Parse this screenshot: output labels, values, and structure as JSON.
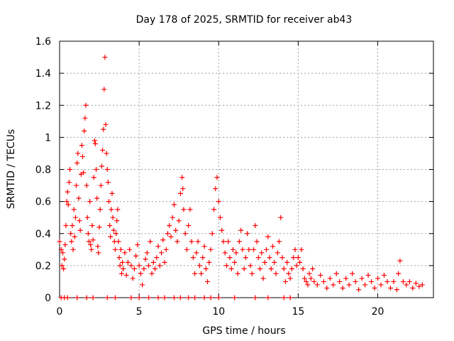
{
  "chart_data": {
    "type": "scatter",
    "title": "Day 178 of 2025, SRMTID for receiver ab43",
    "xlabel": "GPS time / hours",
    "ylabel": "SRMTID / TECUs",
    "xlim": [
      0,
      23.5
    ],
    "ylim": [
      0,
      1.6
    ],
    "xticks": [
      0,
      5,
      10,
      15,
      20
    ],
    "xtick_labels": [
      "0",
      "5",
      "10",
      "15",
      "20"
    ],
    "yticks": [
      0,
      0.2,
      0.4,
      0.6,
      0.8,
      1.0,
      1.2,
      1.4,
      1.6
    ],
    "ytick_labels": [
      "0",
      "0.2",
      "0.4",
      "0.6",
      "0.8",
      "1",
      "1.2",
      "1.4",
      "1.6"
    ],
    "grid": true,
    "marker": "plus",
    "color": "#ff0000",
    "series": [
      {
        "name": "SRMTID",
        "points": [
          [
            0.0,
            0.35
          ],
          [
            0.1,
            0.3
          ],
          [
            0.15,
            0.2
          ],
          [
            0.2,
            0.28
          ],
          [
            0.25,
            0.18
          ],
          [
            0.3,
            0.24
          ],
          [
            0.35,
            0.33
          ],
          [
            0.4,
            0.45
          ],
          [
            0.45,
            0.6
          ],
          [
            0.5,
            0.66
          ],
          [
            0.55,
            0.58
          ],
          [
            0.6,
            0.72
          ],
          [
            0.65,
            0.8
          ],
          [
            0.7,
            0.4
          ],
          [
            0.75,
            0.35
          ],
          [
            0.8,
            0.45
          ],
          [
            0.85,
            0.3
          ],
          [
            0.9,
            0.55
          ],
          [
            0.95,
            0.38
          ],
          [
            1.0,
            0.5
          ],
          [
            1.05,
            0.7
          ],
          [
            1.1,
            0.84
          ],
          [
            1.15,
            0.9
          ],
          [
            1.2,
            0.62
          ],
          [
            1.25,
            0.48
          ],
          [
            1.3,
            0.42
          ],
          [
            1.35,
            0.77
          ],
          [
            1.4,
            0.95
          ],
          [
            1.45,
            0.88
          ],
          [
            1.5,
            0.78
          ],
          [
            1.55,
            1.04
          ],
          [
            1.6,
            1.12
          ],
          [
            1.65,
            1.2
          ],
          [
            1.7,
            0.7
          ],
          [
            1.75,
            0.5
          ],
          [
            1.8,
            0.4
          ],
          [
            1.85,
            0.35
          ],
          [
            1.9,
            0.6
          ],
          [
            1.95,
            0.33
          ],
          [
            2.0,
            0.3
          ],
          [
            2.05,
            0.45
          ],
          [
            2.1,
            0.36
          ],
          [
            2.15,
            0.75
          ],
          [
            2.2,
            0.98
          ],
          [
            2.25,
            0.96
          ],
          [
            2.3,
            0.8
          ],
          [
            2.35,
            0.62
          ],
          [
            2.4,
            0.32
          ],
          [
            2.45,
            0.28
          ],
          [
            2.5,
            0.44
          ],
          [
            2.55,
            0.55
          ],
          [
            2.6,
            0.7
          ],
          [
            2.65,
            0.82
          ],
          [
            2.7,
            0.92
          ],
          [
            2.75,
            1.05
          ],
          [
            2.8,
            1.3
          ],
          [
            2.85,
            1.5
          ],
          [
            2.9,
            1.08
          ],
          [
            2.95,
            0.9
          ],
          [
            3.0,
            0.8
          ],
          [
            3.05,
            0.72
          ],
          [
            3.1,
            0.6
          ],
          [
            3.15,
            0.45
          ],
          [
            3.2,
            0.38
          ],
          [
            3.25,
            0.55
          ],
          [
            3.3,
            0.65
          ],
          [
            3.35,
            0.5
          ],
          [
            3.4,
            0.42
          ],
          [
            3.45,
            0.35
          ],
          [
            3.5,
            0.3
          ],
          [
            3.55,
            0.4
          ],
          [
            3.6,
            0.48
          ],
          [
            3.65,
            0.55
          ],
          [
            3.7,
            0.35
          ],
          [
            3.75,
            0.25
          ],
          [
            3.8,
            0.2
          ],
          [
            3.85,
            0.3
          ],
          [
            3.9,
            0.15
          ],
          [
            3.95,
            0.22
          ],
          [
            4.0,
            0.18
          ],
          [
            4.1,
            0.28
          ],
          [
            4.2,
            0.14
          ],
          [
            4.3,
            0.22
          ],
          [
            4.4,
            0.3
          ],
          [
            4.5,
            0.2
          ],
          [
            4.6,
            0.12
          ],
          [
            4.7,
            0.18
          ],
          [
            4.8,
            0.26
          ],
          [
            4.9,
            0.33
          ],
          [
            5.0,
            0.2
          ],
          [
            5.1,
            0.15
          ],
          [
            5.2,
            0.08
          ],
          [
            5.3,
            0.18
          ],
          [
            5.4,
            0.24
          ],
          [
            5.5,
            0.28
          ],
          [
            5.6,
            0.2
          ],
          [
            5.7,
            0.35
          ],
          [
            5.8,
            0.15
          ],
          [
            5.9,
            0.22
          ],
          [
            6.0,
            0.18
          ],
          [
            6.1,
            0.25
          ],
          [
            6.2,
            0.32
          ],
          [
            6.3,
            0.2
          ],
          [
            6.4,
            0.28
          ],
          [
            6.5,
            0.36
          ],
          [
            6.6,
            0.22
          ],
          [
            6.7,
            0.3
          ],
          [
            6.8,
            0.4
          ],
          [
            6.9,
            0.45
          ],
          [
            7.0,
            0.38
          ],
          [
            7.1,
            0.5
          ],
          [
            7.2,
            0.58
          ],
          [
            7.3,
            0.42
          ],
          [
            7.4,
            0.35
          ],
          [
            7.5,
            0.48
          ],
          [
            7.6,
            0.65
          ],
          [
            7.7,
            0.75
          ],
          [
            7.75,
            0.68
          ],
          [
            7.8,
            0.55
          ],
          [
            7.9,
            0.4
          ],
          [
            8.0,
            0.3
          ],
          [
            8.1,
            0.45
          ],
          [
            8.2,
            0.55
          ],
          [
            8.3,
            0.35
          ],
          [
            8.4,
            0.25
          ],
          [
            8.5,
            0.15
          ],
          [
            8.6,
            0.28
          ],
          [
            8.7,
            0.35
          ],
          [
            8.8,
            0.2
          ],
          [
            8.9,
            0.15
          ],
          [
            9.0,
            0.25
          ],
          [
            9.1,
            0.32
          ],
          [
            9.2,
            0.18
          ],
          [
            9.3,
            0.1
          ],
          [
            9.4,
            0.22
          ],
          [
            9.5,
            0.3
          ],
          [
            9.6,
            0.4
          ],
          [
            9.7,
            0.55
          ],
          [
            9.8,
            0.68
          ],
          [
            9.9,
            0.75
          ],
          [
            10.0,
            0.6
          ],
          [
            10.1,
            0.5
          ],
          [
            10.2,
            0.42
          ],
          [
            10.3,
            0.35
          ],
          [
            10.4,
            0.28
          ],
          [
            10.5,
            0.2
          ],
          [
            10.6,
            0.35
          ],
          [
            10.7,
            0.25
          ],
          [
            10.8,
            0.18
          ],
          [
            10.9,
            0.3
          ],
          [
            11.0,
            0.22
          ],
          [
            11.1,
            0.28
          ],
          [
            11.2,
            0.15
          ],
          [
            11.3,
            0.35
          ],
          [
            11.4,
            0.42
          ],
          [
            11.5,
            0.3
          ],
          [
            11.6,
            0.18
          ],
          [
            11.7,
            0.25
          ],
          [
            11.8,
            0.4
          ],
          [
            11.9,
            0.3
          ],
          [
            12.0,
            0.2
          ],
          [
            12.1,
            0.15
          ],
          [
            12.2,
            0.3
          ],
          [
            12.3,
            0.45
          ],
          [
            12.4,
            0.35
          ],
          [
            12.5,
            0.25
          ],
          [
            12.6,
            0.18
          ],
          [
            12.7,
            0.28
          ],
          [
            12.8,
            0.12
          ],
          [
            12.9,
            0.22
          ],
          [
            13.0,
            0.3
          ],
          [
            13.1,
            0.38
          ],
          [
            13.2,
            0.25
          ],
          [
            13.3,
            0.18
          ],
          [
            13.4,
            0.32
          ],
          [
            13.5,
            0.22
          ],
          [
            13.6,
            0.15
          ],
          [
            13.7,
            0.28
          ],
          [
            13.8,
            0.35
          ],
          [
            13.9,
            0.5
          ],
          [
            14.0,
            0.25
          ],
          [
            14.1,
            0.18
          ],
          [
            14.2,
            0.1
          ],
          [
            14.3,
            0.22
          ],
          [
            14.4,
            0.15
          ],
          [
            14.5,
            0.12
          ],
          [
            14.6,
            0.18
          ],
          [
            14.7,
            0.25
          ],
          [
            14.8,
            0.3
          ],
          [
            14.9,
            0.2
          ],
          [
            15.0,
            0.25
          ],
          [
            15.1,
            0.22
          ],
          [
            15.2,
            0.3
          ],
          [
            15.3,
            0.18
          ],
          [
            15.4,
            0.12
          ],
          [
            15.5,
            0.1
          ],
          [
            15.6,
            0.08
          ],
          [
            15.7,
            0.15
          ],
          [
            15.8,
            0.12
          ],
          [
            15.9,
            0.18
          ],
          [
            16.0,
            0.1
          ],
          [
            16.2,
            0.08
          ],
          [
            16.4,
            0.14
          ],
          [
            16.6,
            0.1
          ],
          [
            16.8,
            0.06
          ],
          [
            17.0,
            0.12
          ],
          [
            17.2,
            0.08
          ],
          [
            17.4,
            0.15
          ],
          [
            17.6,
            0.1
          ],
          [
            17.8,
            0.06
          ],
          [
            18.0,
            0.12
          ],
          [
            18.2,
            0.08
          ],
          [
            18.4,
            0.15
          ],
          [
            18.6,
            0.1
          ],
          [
            18.8,
            0.05
          ],
          [
            19.0,
            0.12
          ],
          [
            19.2,
            0.08
          ],
          [
            19.4,
            0.14
          ],
          [
            19.6,
            0.1
          ],
          [
            19.8,
            0.06
          ],
          [
            20.0,
            0.12
          ],
          [
            20.2,
            0.08
          ],
          [
            20.4,
            0.14
          ],
          [
            20.6,
            0.1
          ],
          [
            20.8,
            0.06
          ],
          [
            21.0,
            0.1
          ],
          [
            21.2,
            0.05
          ],
          [
            21.3,
            0.15
          ],
          [
            21.4,
            0.23
          ],
          [
            21.6,
            0.1
          ],
          [
            21.8,
            0.08
          ],
          [
            22.0,
            0.1
          ],
          [
            22.2,
            0.06
          ],
          [
            22.4,
            0.09
          ],
          [
            22.6,
            0.07
          ],
          [
            22.8,
            0.08
          ],
          [
            0.1,
            0.0
          ],
          [
            0.3,
            0.0
          ],
          [
            0.5,
            0.0
          ],
          [
            1.1,
            0.0
          ],
          [
            1.7,
            0.0
          ],
          [
            2.1,
            0.0
          ],
          [
            3.0,
            0.0
          ],
          [
            3.5,
            0.0
          ],
          [
            4.5,
            0.0
          ],
          [
            5.0,
            0.0
          ],
          [
            5.6,
            0.0
          ],
          [
            6.2,
            0.0
          ],
          [
            6.6,
            0.0
          ],
          [
            7.2,
            0.0
          ],
          [
            7.6,
            0.0
          ],
          [
            8.1,
            0.0
          ],
          [
            8.5,
            0.0
          ],
          [
            9.1,
            0.0
          ],
          [
            9.5,
            0.0
          ],
          [
            10.0,
            0.0
          ],
          [
            11.0,
            0.0
          ],
          [
            12.3,
            0.0
          ],
          [
            13.1,
            0.0
          ],
          [
            14.1,
            0.0
          ],
          [
            14.5,
            0.0
          ]
        ]
      }
    ]
  }
}
